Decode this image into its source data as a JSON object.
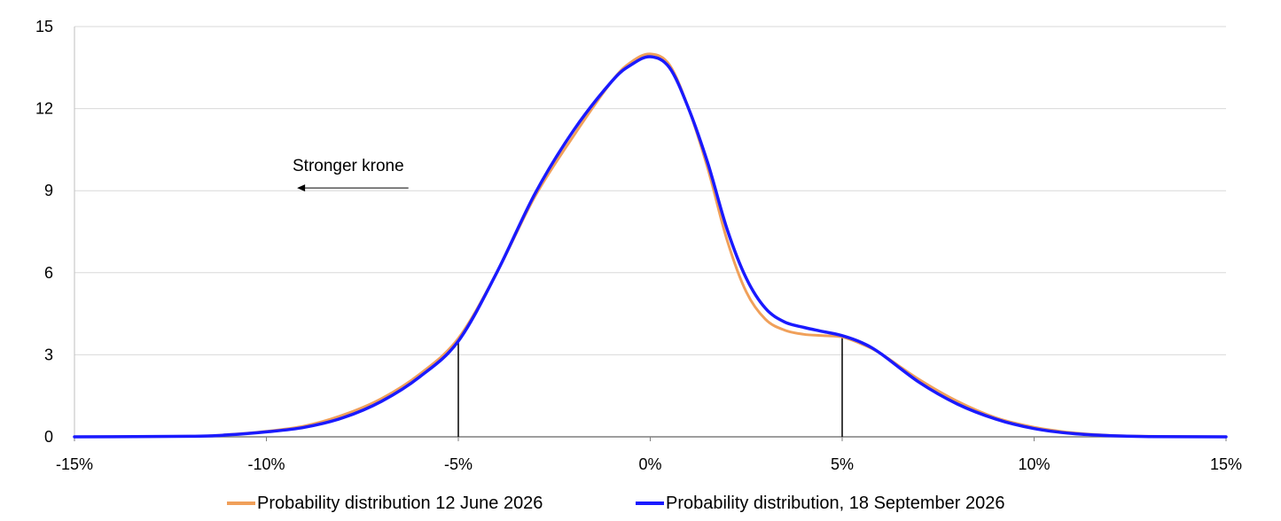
{
  "chart_data": {
    "type": "line",
    "title": "",
    "xlabel": "",
    "ylabel": "",
    "xlim": [
      -15,
      15
    ],
    "ylim": [
      0,
      15
    ],
    "x_ticks": [
      -15,
      -10,
      -5,
      0,
      5,
      10,
      15
    ],
    "x_tick_labels": [
      "-15%",
      "-10%",
      "-5%",
      "0%",
      "5%",
      "10%",
      "15%"
    ],
    "y_ticks": [
      0,
      3,
      6,
      9,
      12,
      15
    ],
    "y_tick_labels": [
      "0",
      "3",
      "6",
      "9",
      "12",
      "15"
    ],
    "grid": true,
    "legend_position": "bottom",
    "annotation": {
      "text": "Stronger krone",
      "arrow_direction": "left",
      "arrow_from": [
        -6.3,
        9.1
      ],
      "arrow_to": [
        -9.2,
        9.1
      ]
    },
    "vertical_markers": [
      {
        "x": -5,
        "y": 3.6
      },
      {
        "x": 5,
        "y": 3.7
      }
    ],
    "series": [
      {
        "name": "Probability distribution 12 June 2026",
        "color": "#F0A05A",
        "x": [
          -15,
          -12,
          -11,
          -10,
          -9,
          -8,
          -7,
          -6,
          -5,
          -4,
          -3,
          -2,
          -1,
          -0.5,
          0,
          0.5,
          1,
          1.5,
          2,
          2.5,
          3,
          3.5,
          4,
          4.5,
          5,
          5.5,
          6,
          7,
          8,
          9,
          10,
          11,
          12,
          13,
          15
        ],
        "values": [
          0,
          0.02,
          0.08,
          0.2,
          0.4,
          0.8,
          1.4,
          2.3,
          3.6,
          6.0,
          8.8,
          11.0,
          13.0,
          13.7,
          14.0,
          13.6,
          12.0,
          9.8,
          7.2,
          5.3,
          4.3,
          3.9,
          3.75,
          3.7,
          3.65,
          3.4,
          3.05,
          2.1,
          1.3,
          0.7,
          0.35,
          0.15,
          0.05,
          0.02,
          0
        ]
      },
      {
        "name": "Probability distribution, 18 September 2026",
        "color": "#1A1AFF",
        "x": [
          -15,
          -12,
          -11,
          -10,
          -9,
          -8,
          -7,
          -6,
          -5,
          -4,
          -3,
          -2,
          -1,
          -0.5,
          0,
          0.5,
          1,
          1.5,
          2,
          2.5,
          3,
          3.5,
          4,
          4.5,
          5,
          5.5,
          6,
          7,
          8,
          9,
          10,
          11,
          12,
          13,
          15
        ],
        "values": [
          0,
          0.02,
          0.07,
          0.18,
          0.35,
          0.7,
          1.3,
          2.2,
          3.5,
          6.0,
          8.9,
          11.2,
          13.0,
          13.6,
          13.9,
          13.5,
          12.0,
          10.0,
          7.6,
          5.8,
          4.7,
          4.2,
          4.0,
          3.85,
          3.7,
          3.45,
          3.05,
          2.0,
          1.2,
          0.65,
          0.3,
          0.12,
          0.04,
          0.01,
          0
        ]
      }
    ]
  }
}
